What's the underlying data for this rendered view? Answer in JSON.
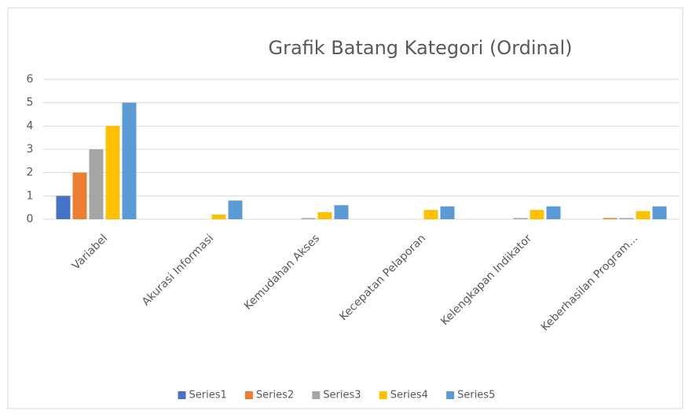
{
  "chart_data": {
    "type": "bar",
    "title": "Grafik Batang Kategori (Ordinal)",
    "categories": [
      "Variabel",
      "Akurasi Informasi",
      "Kemudahan Akses",
      "Kecepatan Pelaporan",
      "Kelengkapan Indikator",
      "Keberhasilan Program..."
    ],
    "series": [
      {
        "name": "Series1",
        "color": "#4472c4",
        "values": [
          1,
          0,
          0,
          0,
          0,
          0
        ]
      },
      {
        "name": "Series2",
        "color": "#ed7d31",
        "values": [
          2,
          0,
          0,
          0,
          0,
          0.05
        ]
      },
      {
        "name": "Series3",
        "color": "#a5a5a5",
        "values": [
          3,
          0,
          0.05,
          0,
          0.05,
          0.05
        ]
      },
      {
        "name": "Series4",
        "color": "#ffc000",
        "values": [
          4,
          0.2,
          0.3,
          0.4,
          0.4,
          0.35
        ]
      },
      {
        "name": "Series5",
        "color": "#5b9bd5",
        "values": [
          5,
          0.8,
          0.6,
          0.55,
          0.55,
          0.55
        ]
      }
    ],
    "ylim": [
      0,
      6
    ],
    "yticks": [
      0,
      1,
      2,
      3,
      4,
      5,
      6
    ],
    "grid": true,
    "legend": "bottom"
  }
}
